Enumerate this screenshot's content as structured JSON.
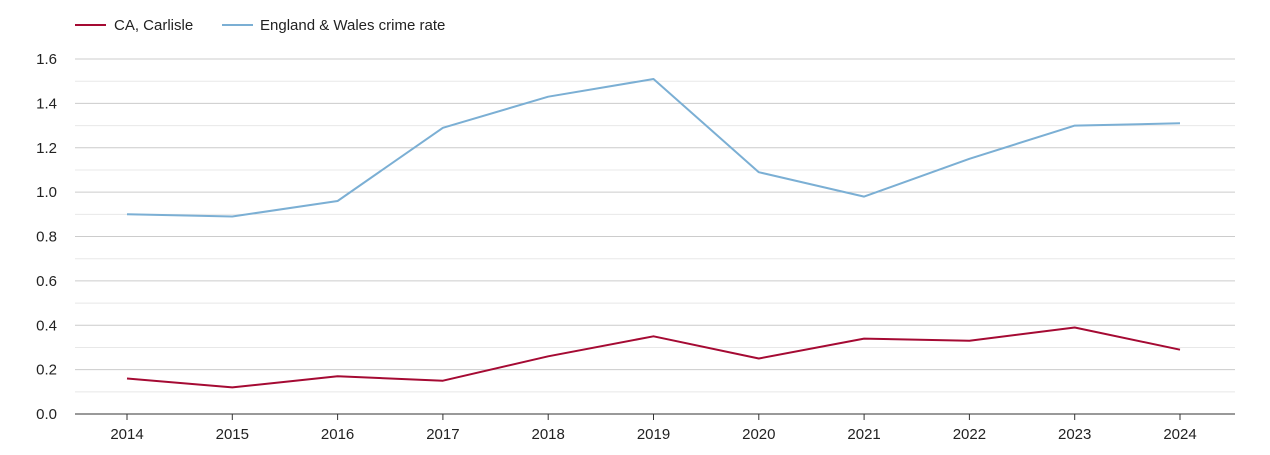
{
  "chart_data": {
    "type": "line",
    "title": "",
    "xlabel": "",
    "ylabel": "",
    "categories": [
      "2014",
      "2015",
      "2016",
      "2017",
      "2018",
      "2019",
      "2020",
      "2021",
      "2022",
      "2023",
      "2024"
    ],
    "ylim": [
      0,
      1.6
    ],
    "yticks": [
      "0.0",
      "0.2",
      "0.4",
      "0.6",
      "0.8",
      "1.0",
      "1.2",
      "1.4",
      "1.6"
    ],
    "grid": true,
    "legend_position": "top-left",
    "series": [
      {
        "name": "CA, Carlisle",
        "color": "#a50a33",
        "values": [
          0.16,
          0.12,
          0.17,
          0.15,
          0.26,
          0.35,
          0.25,
          0.34,
          0.33,
          0.39,
          0.29
        ]
      },
      {
        "name": "England & Wales crime rate",
        "color": "#7bafd4",
        "values": [
          0.9,
          0.89,
          0.96,
          1.29,
          1.43,
          1.51,
          1.09,
          0.98,
          1.15,
          1.3,
          1.31
        ]
      }
    ]
  }
}
